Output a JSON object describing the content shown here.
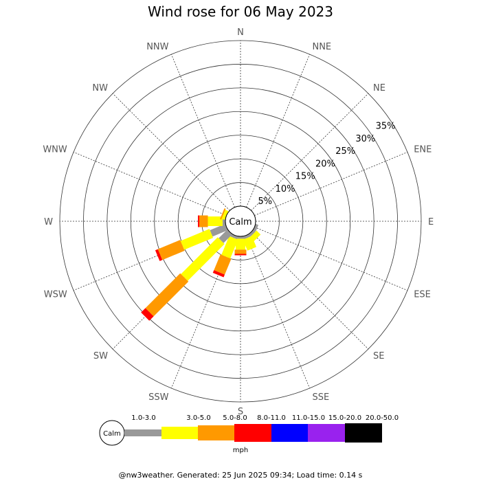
{
  "chart_data": {
    "type": "wind-rose",
    "title": "Wind rose for 06 May 2023",
    "directions": [
      "N",
      "NNE",
      "NE",
      "ENE",
      "E",
      "ESE",
      "SE",
      "SSE",
      "S",
      "SSW",
      "SW",
      "WSW",
      "W",
      "WNW",
      "NW",
      "NNW"
    ],
    "rings": [
      5,
      10,
      15,
      20,
      25,
      30,
      35
    ],
    "ring_labels": [
      "5%",
      "10%",
      "15%",
      "20%",
      "25%",
      "30%",
      "35%"
    ],
    "r_max_percent": 35,
    "calm_label": "Calm",
    "units": "mph",
    "bins": [
      {
        "label": "1.0-3.0",
        "color": "#999999"
      },
      {
        "label": "3.0-5.0",
        "color": "#ffff00"
      },
      {
        "label": "5.0-8.0",
        "color": "#ff9900"
      },
      {
        "label": "8.0-11.0",
        "color": "#ff0000"
      },
      {
        "label": "11.0-15.0",
        "color": "#0000ff"
      },
      {
        "label": "15.0-20.0",
        "color": "#9922ee"
      },
      {
        "label": "20.0-50.0",
        "color": "#000000"
      }
    ],
    "series": [
      {
        "direction": "N",
        "values": [
          0,
          0,
          0,
          0,
          0,
          0,
          0
        ]
      },
      {
        "direction": "NNE",
        "values": [
          0,
          0,
          0,
          0,
          0,
          0,
          0
        ]
      },
      {
        "direction": "NE",
        "values": [
          0,
          0,
          0,
          0,
          0,
          0,
          0
        ]
      },
      {
        "direction": "ENE",
        "values": [
          0,
          0,
          0,
          0,
          0,
          0,
          0
        ]
      },
      {
        "direction": "E",
        "values": [
          0,
          0,
          0,
          0,
          0,
          0,
          0
        ]
      },
      {
        "direction": "ESE",
        "values": [
          0.6,
          0,
          0,
          0,
          0,
          0,
          0
        ]
      },
      {
        "direction": "SE",
        "values": [
          0.6,
          1.2,
          0,
          0,
          0,
          0,
          0
        ]
      },
      {
        "direction": "SSE",
        "values": [
          0.6,
          2.5,
          0,
          0,
          0,
          0,
          0
        ]
      },
      {
        "direction": "S",
        "values": [
          0.5,
          2.3,
          0.9,
          0.3,
          0,
          0,
          0
        ]
      },
      {
        "direction": "SSW",
        "values": [
          0.6,
          4.3,
          3.6,
          0.6,
          0,
          0,
          0
        ]
      },
      {
        "direction": "SW",
        "values": [
          2.6,
          11.0,
          10.4,
          1.3,
          0,
          0,
          0
        ]
      },
      {
        "direction": "WSW",
        "values": [
          3.5,
          6.6,
          5.1,
          0.6,
          0,
          0,
          0
        ]
      },
      {
        "direction": "W",
        "values": [
          0.6,
          3.1,
          1.8,
          0.3,
          0,
          0,
          0
        ]
      },
      {
        "direction": "WNW",
        "values": [
          0,
          0.7,
          0.3,
          0,
          0,
          0,
          0
        ]
      },
      {
        "direction": "NW",
        "values": [
          0,
          0,
          0,
          0,
          0,
          0,
          0
        ]
      },
      {
        "direction": "NNW",
        "values": [
          0,
          0,
          0,
          0,
          0,
          0,
          0
        ]
      }
    ]
  },
  "footer": "@nw3weather. Generated: 25 Jun 2025 09:34; Load time: 0.14 s"
}
